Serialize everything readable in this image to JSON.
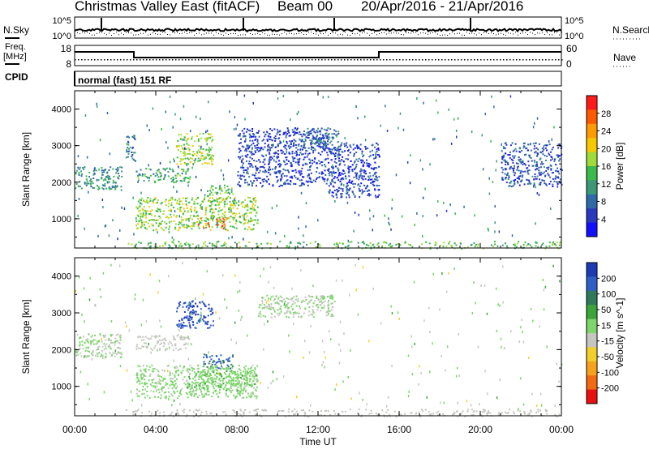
{
  "header": {
    "radar": "Christmas Valley East (fitACF)",
    "beam": "Beam 00",
    "date_range": "20/Apr/2016 - 21/Apr/2016"
  },
  "top_panels": {
    "nsky_label": "N.Sky",
    "nsky_ticks": [
      "10^5",
      "10^0"
    ],
    "nsearch_label": "N.Search",
    "nsearch_ticks": [
      "10^5",
      "10^0"
    ],
    "freq_label": "Freq.",
    "freq_unit": "[MHz]",
    "freq_ticks": [
      "18",
      "8"
    ],
    "nave_label": "Nave",
    "nave_ticks": [
      "60",
      "0"
    ],
    "cpid_label": "CPID",
    "cpid_text": "normal (fast) 151 RF"
  },
  "power_colorbar": {
    "label": "Power [dB]",
    "ticks": [
      "28",
      "24",
      "20",
      "16",
      "12",
      "8",
      "4"
    ],
    "colors": [
      "#ff1a1a",
      "#ff5a00",
      "#ff9a00",
      "#f5c800",
      "#9fdc3a",
      "#3cba4a",
      "#3a9a78",
      "#2f6aa8",
      "#2a38c0",
      "#1010ff"
    ]
  },
  "velocity_colorbar": {
    "label": "Velocity [m s^-1]",
    "ticks": [
      "200",
      "100",
      "50",
      "15",
      "-15",
      "-50",
      "-100",
      "-200"
    ],
    "colors": [
      "#1d3bb3",
      "#2f5fc6",
      "#2e7a5a",
      "#3aa53a",
      "#7cd66a",
      "#c6c6c0",
      "#f2cf2a",
      "#f6a21a",
      "#f46a10",
      "#e81010"
    ]
  },
  "axes": {
    "ylabel": "Slant Range [km]",
    "yticks": [
      "4000",
      "3000",
      "2000",
      "1000"
    ],
    "xticks": [
      "00:00",
      "04:00",
      "08:00",
      "12:00",
      "16:00",
      "20:00",
      "00:00"
    ],
    "xlabel": "Time UT"
  },
  "chart_data": [
    {
      "type": "heatmap",
      "title": "Power",
      "xlabel": "Time UT",
      "ylabel": "Slant Range [km]",
      "xlim": [
        0,
        24
      ],
      "ylim": [
        200,
        4500
      ],
      "colorbar": {
        "label": "Power [dB]",
        "range": [
          0,
          30
        ]
      },
      "echo_regions": [
        {
          "t0": 0.0,
          "t1": 2.3,
          "r0": 1800,
          "r1": 2450,
          "value": 10
        },
        {
          "t0": 2.5,
          "t1": 3.0,
          "r0": 2600,
          "r1": 3300,
          "value": 8
        },
        {
          "t0": 3.0,
          "t1": 5.7,
          "r0": 2000,
          "r1": 2400,
          "value": 12
        },
        {
          "t0": 5.0,
          "t1": 6.8,
          "r0": 2500,
          "r1": 3350,
          "value": 16
        },
        {
          "t0": 6.5,
          "t1": 7.8,
          "r0": 1450,
          "r1": 1950,
          "value": 14
        },
        {
          "t0": 3.0,
          "t1": 9.0,
          "r0": 700,
          "r1": 1600,
          "value": 16
        },
        {
          "t0": 6.0,
          "t1": 7.5,
          "r0": 750,
          "r1": 1050,
          "value": 26
        },
        {
          "t0": 8.0,
          "t1": 12.5,
          "r0": 1900,
          "r1": 3500,
          "value": 5
        },
        {
          "t0": 11.0,
          "t1": 13.0,
          "r0": 2900,
          "r1": 3500,
          "value": 8
        },
        {
          "t0": 12.5,
          "t1": 15.0,
          "r0": 1600,
          "r1": 3100,
          "value": 5
        },
        {
          "t0": 21.0,
          "t1": 24.0,
          "r0": 1900,
          "r1": 3100,
          "value": 6
        },
        {
          "t0": 2.5,
          "t1": 24.0,
          "r0": 200,
          "r1": 400,
          "value": 14
        }
      ]
    },
    {
      "type": "heatmap",
      "title": "Velocity",
      "xlabel": "Time UT",
      "ylabel": "Slant Range [km]",
      "xlim": [
        0,
        24
      ],
      "ylim": [
        200,
        4500
      ],
      "colorbar": {
        "label": "Velocity [m s^-1]",
        "range": [
          -250,
          250
        ]
      },
      "echo_regions": [
        {
          "t0": 0.0,
          "t1": 2.3,
          "r0": 1800,
          "r1": 2450,
          "value": 0
        },
        {
          "t0": 3.0,
          "t1": 5.7,
          "r0": 2000,
          "r1": 2400,
          "value": -20
        },
        {
          "t0": 5.0,
          "t1": 6.8,
          "r0": 2600,
          "r1": 3350,
          "value": 200
        },
        {
          "t0": 6.3,
          "t1": 7.8,
          "r0": 1500,
          "r1": 1900,
          "value": 150
        },
        {
          "t0": 3.0,
          "t1": 9.0,
          "r0": 700,
          "r1": 1600,
          "value": 10
        },
        {
          "t0": 5.5,
          "t1": 9.0,
          "r0": 900,
          "r1": 1500,
          "value": 40
        },
        {
          "t0": 9.0,
          "t1": 12.8,
          "r0": 2900,
          "r1": 3500,
          "value": 0
        },
        {
          "t0": 2.5,
          "t1": 24.0,
          "r0": 200,
          "r1": 400,
          "value": -30
        }
      ]
    }
  ]
}
